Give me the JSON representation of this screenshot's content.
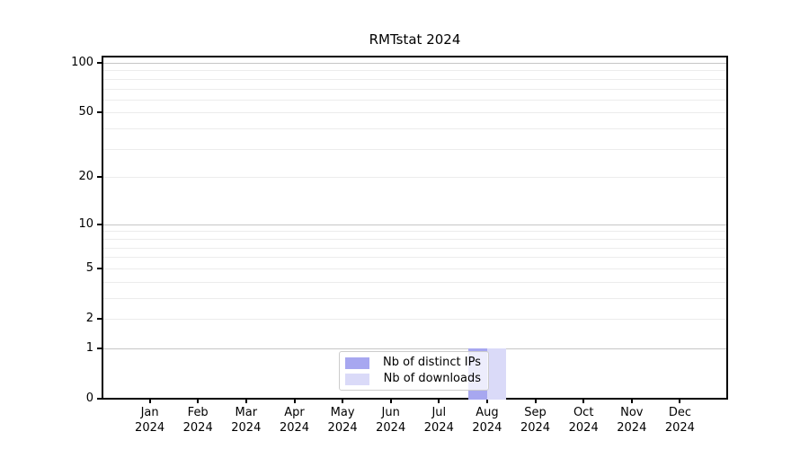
{
  "chart_data": {
    "type": "bar",
    "title": "RMTstat 2024",
    "categories": [
      "Jan 2024",
      "Feb 2024",
      "Mar 2024",
      "Apr 2024",
      "May 2024",
      "Jun 2024",
      "Jul 2024",
      "Aug 2024",
      "Sep 2024",
      "Oct 2024",
      "Nov 2024",
      "Dec 2024"
    ],
    "series": [
      {
        "name": "Nb of distinct IPs",
        "color": "#a7a7f0",
        "values": [
          0,
          0,
          0,
          0,
          0,
          0,
          0,
          1,
          0,
          0,
          0,
          0
        ]
      },
      {
        "name": "Nb of downloads",
        "color": "#dadaf8",
        "values": [
          0,
          0,
          0,
          0,
          0,
          0,
          0,
          1,
          0,
          0,
          0,
          0
        ]
      }
    ],
    "xlabel": "",
    "ylabel": "",
    "y_axis": {
      "scale": "log1p",
      "tick_values": [
        0,
        1,
        2,
        5,
        10,
        20,
        50,
        100
      ],
      "tick_labels": [
        "0",
        "1",
        "2",
        "5",
        "10",
        "20",
        "50",
        "100"
      ],
      "decade_gridline_values": [
        1,
        10,
        100
      ],
      "light_gridline_values": [
        2,
        3,
        4,
        5,
        6,
        7,
        8,
        9,
        20,
        30,
        40,
        50,
        60,
        70,
        80,
        90
      ],
      "range": [
        0,
        110
      ]
    },
    "grid": true,
    "legend_position": "inside-bottom-center",
    "colors": {
      "grid_decade": "#c6c6c6",
      "grid_light": "#ececec",
      "axis": "#000000",
      "legend_border": "#cccccc",
      "legend_background": "rgba(255,255,255,0.8)"
    }
  }
}
